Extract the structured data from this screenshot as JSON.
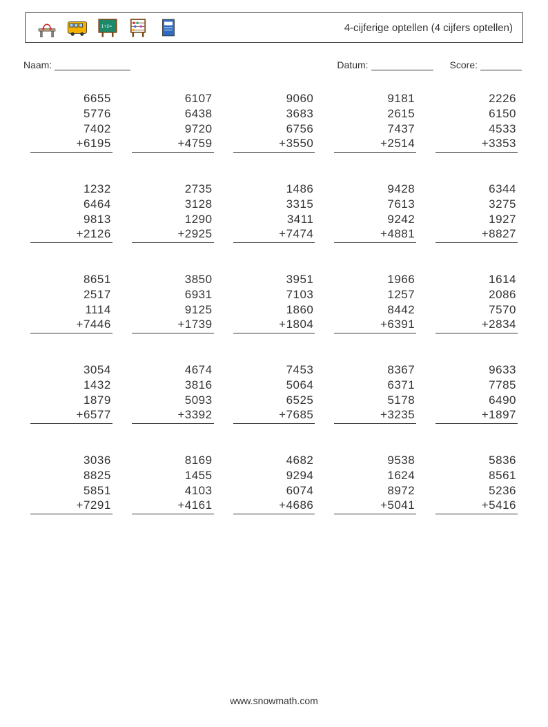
{
  "header": {
    "title": "4-cijferige optellen (4 cijfers optellen)",
    "icons": [
      "school-desk-icon",
      "school-bus-icon",
      "chalkboard-icon",
      "abacus-icon",
      "book-icon"
    ]
  },
  "meta": {
    "name_label": "Naam:",
    "date_label": "Datum:",
    "score_label": "Score:"
  },
  "worksheet": {
    "type": "arithmetic-worksheet",
    "operator": "+",
    "columns": 5,
    "rows": 5,
    "number_fontsize_pt": 13,
    "text_color": "#333333",
    "rule_color": "#333333",
    "problems": [
      [
        [
          "6655",
          "5776",
          "7402",
          "6195"
        ],
        [
          "6107",
          "6438",
          "9720",
          "4759"
        ],
        [
          "9060",
          "3683",
          "6756",
          "3550"
        ],
        [
          "9181",
          "2615",
          "7437",
          "2514"
        ],
        [
          "2226",
          "6150",
          "4533",
          "3353"
        ]
      ],
      [
        [
          "1232",
          "6464",
          "9813",
          "2126"
        ],
        [
          "2735",
          "3128",
          "1290",
          "2925"
        ],
        [
          "1486",
          "3315",
          "3411",
          "7474"
        ],
        [
          "9428",
          "7613",
          "9242",
          "4881"
        ],
        [
          "6344",
          "3275",
          "1927",
          "8827"
        ]
      ],
      [
        [
          "8651",
          "2517",
          "1114",
          "7446"
        ],
        [
          "3850",
          "6931",
          "9125",
          "1739"
        ],
        [
          "3951",
          "7103",
          "1860",
          "1804"
        ],
        [
          "1966",
          "1257",
          "8442",
          "6391"
        ],
        [
          "1614",
          "2086",
          "7570",
          "2834"
        ]
      ],
      [
        [
          "3054",
          "1432",
          "1879",
          "6577"
        ],
        [
          "4674",
          "3816",
          "5093",
          "3392"
        ],
        [
          "7453",
          "5064",
          "6525",
          "7685"
        ],
        [
          "8367",
          "6371",
          "5178",
          "3235"
        ],
        [
          "9633",
          "7785",
          "6490",
          "1897"
        ]
      ],
      [
        [
          "3036",
          "8825",
          "5851",
          "7291"
        ],
        [
          "8169",
          "1455",
          "4103",
          "4161"
        ],
        [
          "4682",
          "9294",
          "6074",
          "4686"
        ],
        [
          "9538",
          "1624",
          "8972",
          "5041"
        ],
        [
          "5836",
          "8561",
          "5236",
          "5416"
        ]
      ]
    ]
  },
  "footer": {
    "url": "www.snowmath.com"
  }
}
